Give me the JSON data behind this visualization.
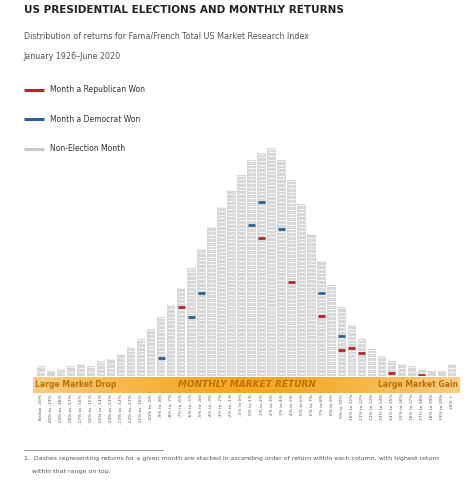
{
  "title": "US PRESIDENTIAL ELECTIONS AND MONTHLY RETURNS",
  "subtitle1": "Distribution of returns for Fama/French Total US Market Research Index",
  "subtitle2": "January 1926–June 2020",
  "legend": [
    {
      "label": "Month a Republican Won",
      "color": "#b5292a"
    },
    {
      "label": "Month a Democrat Won",
      "color": "#2a6496"
    },
    {
      "label": "Non-Election Month",
      "color": "#c8c8c8"
    }
  ],
  "footer_line1": "1.  Dashes representing returns for a given month are stacked in ascending order of return within each column, with highest return",
  "footer_line2": "    within that range on top.",
  "xlabel_left": "Large Market Drop",
  "xlabel_center": "MONTHLY MARKET RETURN",
  "xlabel_right": "Large Market Gain",
  "bar_color": "#d8d8d8",
  "background_color": "#ffffff",
  "bins": [
    "Below -20%",
    "-20% to -19%",
    "-19% to -18%",
    "-18% to -17%",
    "-17% to -16%",
    "-16% to -15%",
    "-15% to -14%",
    "-14% to -13%",
    "-13% to -12%",
    "-12% to -11%",
    "-11% to -10%",
    "-10% to -9%",
    "-9% to -8%",
    "-8% to -7%",
    "-7% to -6%",
    "-6% to -5%",
    "-5% to -4%",
    "-4% to -3%",
    "-3% to -2%",
    "-2% to -1%",
    "-1% to 0%",
    "0% to 1%",
    "1% to 2%",
    "2% to 3%",
    "3% to 4%",
    "4% to 5%",
    "5% to 6%",
    "6% to 7%",
    "7% to 8%",
    "8% to 9%",
    "9% to 10%",
    "10% to 11%",
    "11% to 12%",
    "12% to 13%",
    "13% to 14%",
    "14% to 15%",
    "15% to 16%",
    "16% to 17%",
    "17% to 18%",
    "18% to 19%",
    "19% to 20%",
    "20% +"
  ],
  "counts": [
    4,
    2,
    3,
    4,
    5,
    4,
    6,
    7,
    9,
    12,
    15,
    19,
    24,
    29,
    36,
    44,
    52,
    61,
    69,
    76,
    82,
    88,
    91,
    93,
    88,
    80,
    70,
    58,
    47,
    37,
    28,
    21,
    15,
    11,
    8,
    6,
    5,
    4,
    3,
    2,
    2,
    5
  ],
  "repub_marks": [
    {
      "bin": 14,
      "yf": 0.78
    },
    {
      "bin": 22,
      "yf": 0.62
    },
    {
      "bin": 25,
      "yf": 0.48
    },
    {
      "bin": 28,
      "yf": 0.52
    },
    {
      "bin": 30,
      "yf": 0.38
    },
    {
      "bin": 31,
      "yf": 0.55
    },
    {
      "bin": 32,
      "yf": 0.62
    },
    {
      "bin": 35,
      "yf": 0.2
    },
    {
      "bin": 38,
      "yf": 0.15
    }
  ],
  "dem_marks": [
    {
      "bin": 12,
      "yf": 0.3
    },
    {
      "bin": 15,
      "yf": 0.55
    },
    {
      "bin": 16,
      "yf": 0.65
    },
    {
      "bin": 21,
      "yf": 0.7
    },
    {
      "bin": 22,
      "yf": 0.78
    },
    {
      "bin": 24,
      "yf": 0.68
    },
    {
      "bin": 28,
      "yf": 0.72
    },
    {
      "bin": 30,
      "yf": 0.58
    }
  ]
}
